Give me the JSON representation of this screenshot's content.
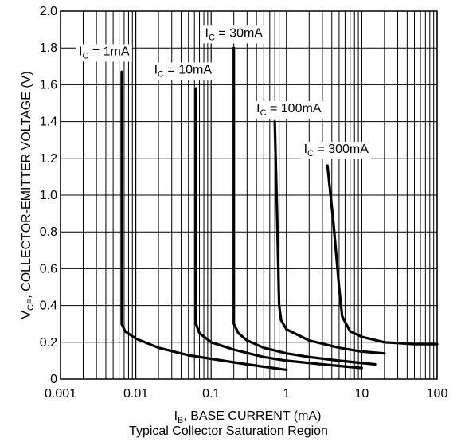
{
  "chart_data": {
    "type": "line",
    "title": "",
    "caption": "Typical Collector Saturation Region",
    "xscale": "log",
    "xlim": [
      0.001,
      100
    ],
    "ylim": [
      0,
      2.0
    ],
    "grid": true,
    "xlabel": {
      "main": "I",
      "sub": "B",
      "rest": ", BASE CURRENT (mA)"
    },
    "ylabel": {
      "main": "V",
      "sub": "CE",
      "rest": ", COLLECTOR-EMITTER VOLTAGE (V)"
    },
    "xticks": [
      {
        "value": 0.001,
        "label": "0.001"
      },
      {
        "value": 0.01,
        "label": "0.01"
      },
      {
        "value": 0.1,
        "label": "0.1"
      },
      {
        "value": 1,
        "label": "1"
      },
      {
        "value": 10,
        "label": "10"
      },
      {
        "value": 100,
        "label": "100"
      }
    ],
    "yticks": [
      {
        "value": 2.0,
        "label": "2.0"
      },
      {
        "value": 1.8,
        "label": "1.8"
      },
      {
        "value": 1.6,
        "label": "1.6"
      },
      {
        "value": 1.4,
        "label": "1.4"
      },
      {
        "value": 1.2,
        "label": "1.2"
      },
      {
        "value": 1.0,
        "label": "1.0"
      },
      {
        "value": 0.8,
        "label": "0.8"
      },
      {
        "value": 0.6,
        "label": "0.6"
      },
      {
        "value": 0.4,
        "label": "0.4"
      },
      {
        "value": 0.2,
        "label": "0.2"
      },
      {
        "value": 0,
        "label": "0"
      }
    ],
    "series": [
      {
        "label_main": "I",
        "label_sub": "C",
        "label_rest": " = 1mA",
        "label_at": [
          0.00175,
          1.76
        ],
        "points": [
          [
            0.0065,
            1.67
          ],
          [
            0.0065,
            0.3
          ],
          [
            0.0072,
            0.26
          ],
          [
            0.01,
            0.22
          ],
          [
            0.02,
            0.17
          ],
          [
            0.05,
            0.13
          ],
          [
            0.1,
            0.11
          ],
          [
            0.3,
            0.08
          ],
          [
            1,
            0.05
          ]
        ]
      },
      {
        "label_main": "I",
        "label_sub": "C",
        "label_rest": " = 10mA",
        "label_at": [
          0.0175,
          1.66
        ],
        "points": [
          [
            0.063,
            1.58
          ],
          [
            0.063,
            0.3
          ],
          [
            0.07,
            0.25
          ],
          [
            0.1,
            0.2
          ],
          [
            0.2,
            0.16
          ],
          [
            0.5,
            0.12
          ],
          [
            1,
            0.1
          ],
          [
            3,
            0.08
          ],
          [
            10,
            0.06
          ]
        ]
      },
      {
        "label_main": "I",
        "label_sub": "C",
        "label_rest": " = 30mA",
        "label_at": [
          0.083,
          1.86
        ],
        "points": [
          [
            0.2,
            1.8
          ],
          [
            0.2,
            0.3
          ],
          [
            0.23,
            0.25
          ],
          [
            0.3,
            0.21
          ],
          [
            0.5,
            0.17
          ],
          [
            1,
            0.14
          ],
          [
            2,
            0.12
          ],
          [
            5,
            0.1
          ],
          [
            15,
            0.08
          ]
        ]
      },
      {
        "label_main": "I",
        "label_sub": "C",
        "label_rest": " = 100mA",
        "label_at": [
          0.4,
          1.45
        ],
        "points": [
          [
            0.7,
            1.4
          ],
          [
            0.75,
            0.9
          ],
          [
            0.8,
            0.4
          ],
          [
            0.85,
            0.32
          ],
          [
            1,
            0.27
          ],
          [
            2,
            0.21
          ],
          [
            5,
            0.17
          ],
          [
            10,
            0.15
          ],
          [
            20,
            0.14
          ]
        ]
      },
      {
        "label_main": "I",
        "label_sub": "C",
        "label_rest": " = 300mA",
        "label_at": [
          1.7,
          1.23
        ],
        "points": [
          [
            3.5,
            1.16
          ],
          [
            4.2,
            0.85
          ],
          [
            5.0,
            0.5
          ],
          [
            5.5,
            0.34
          ],
          [
            7,
            0.26
          ],
          [
            10,
            0.23
          ],
          [
            20,
            0.2
          ],
          [
            50,
            0.19
          ],
          [
            100,
            0.19
          ]
        ]
      }
    ]
  }
}
